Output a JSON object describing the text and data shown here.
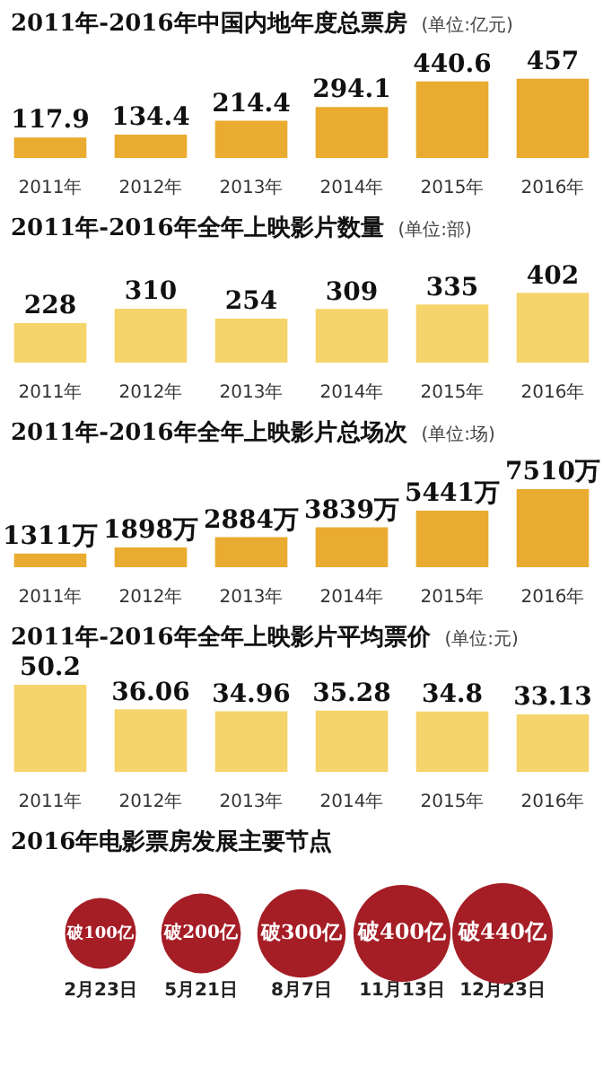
{
  "chart_data": [
    {
      "type": "bar",
      "title": "2011年-2016年中国内地年度总票房",
      "subtitle": "(单位:亿元)",
      "categories": [
        "2011年",
        "2012年",
        "2013年",
        "2014年",
        "2015年",
        "2016年"
      ],
      "values": [
        117.9,
        134.4,
        214.4,
        294.1,
        440.6,
        457
      ],
      "color": "#e9ab30",
      "data_labels": true
    },
    {
      "type": "bar",
      "title": "2011年-2016年全年上映影片数量",
      "subtitle": "(单位:部)",
      "categories": [
        "2011年",
        "2012年",
        "2013年",
        "2014年",
        "2015年",
        "2016年"
      ],
      "values": [
        228,
        310,
        254,
        309,
        335,
        402
      ],
      "color": "#f6d46c",
      "data_labels": true
    },
    {
      "type": "bar",
      "title": "2011年-2016年全年上映影片总场次",
      "subtitle": "(单位:场)",
      "categories": [
        "2011年",
        "2012年",
        "2013年",
        "2014年",
        "2015年",
        "2016年"
      ],
      "values": [
        1311,
        1898,
        2884,
        3839,
        5441,
        7510
      ],
      "value_labels": [
        "1311万",
        "1898万",
        "2884万",
        "3839万",
        "5441万",
        "7510万"
      ],
      "color": "#e9ab30"
    },
    {
      "type": "bar",
      "title": "2011年-2016年全年上映影片平均票价",
      "subtitle": "(单位:元)",
      "categories": [
        "2011年",
        "2012年",
        "2013年",
        "2014年",
        "2015年",
        "2016年"
      ],
      "values": [
        50.2,
        36.06,
        34.96,
        35.28,
        34.8,
        33.13
      ],
      "color": "#f6d46c",
      "data_labels": true
    },
    {
      "type": "other",
      "title": "2016年电影票房发展主要节点",
      "categories": [
        "2月23日",
        "5月21日",
        "8月7日",
        "11月13日",
        "12月23日"
      ],
      "values": [
        100,
        200,
        300,
        400,
        440
      ],
      "value_labels": [
        "破100亿",
        "破200亿",
        "破300亿",
        "破400亿",
        "破440亿"
      ],
      "color": "#a51d25"
    }
  ]
}
